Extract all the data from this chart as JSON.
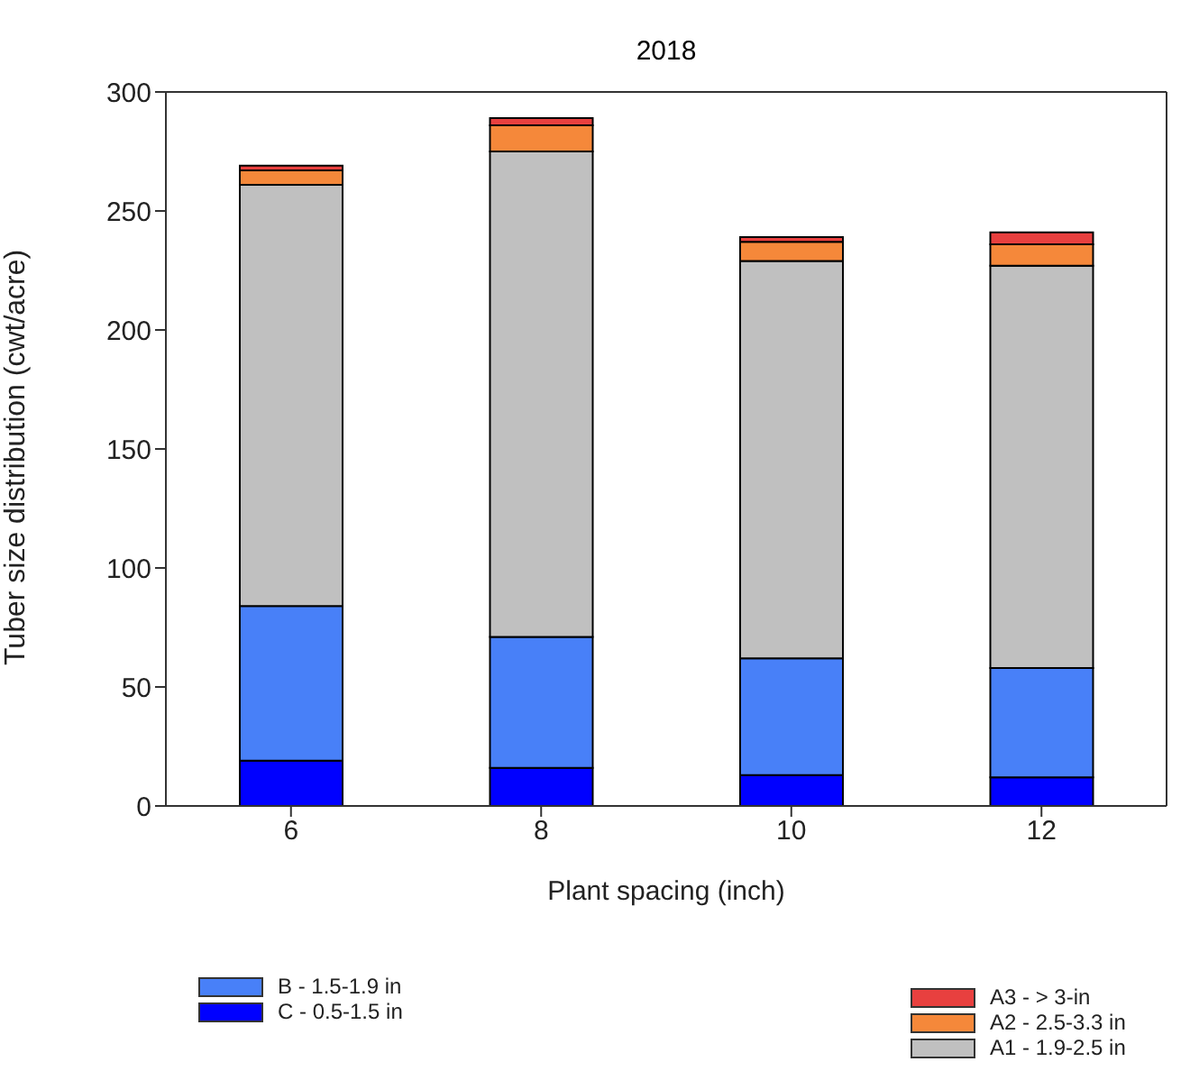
{
  "chart_data": {
    "type": "bar",
    "title": "2018",
    "xlabel": "Plant spacing (inch)",
    "ylabel": "Tuber size distribution (cwt/acre)",
    "categories": [
      "6",
      "8",
      "10",
      "12"
    ],
    "stacked": true,
    "ylim": [
      0,
      300
    ],
    "yticks": [
      0,
      50,
      100,
      150,
      200,
      250,
      300
    ],
    "legend": "bottom",
    "series": [
      {
        "name": "C - 0.5-1.5 in",
        "color": "#0000ff",
        "values": [
          19,
          16,
          13,
          12
        ]
      },
      {
        "name": "B - 1.5-1.9 in",
        "color": "#4880f8",
        "values": [
          65,
          55,
          49,
          46
        ]
      },
      {
        "name": "A1 - 1.9-2.5 in",
        "color": "#c0c0c0",
        "values": [
          177,
          204,
          167,
          169
        ]
      },
      {
        "name": "A2 - 2.5-3.3 in",
        "color": "#f5883a",
        "values": [
          6,
          11,
          8,
          9
        ]
      },
      {
        "name": "A3 - > 3-in",
        "color": "#e8403f",
        "values": [
          2,
          3,
          2,
          5
        ]
      }
    ]
  }
}
